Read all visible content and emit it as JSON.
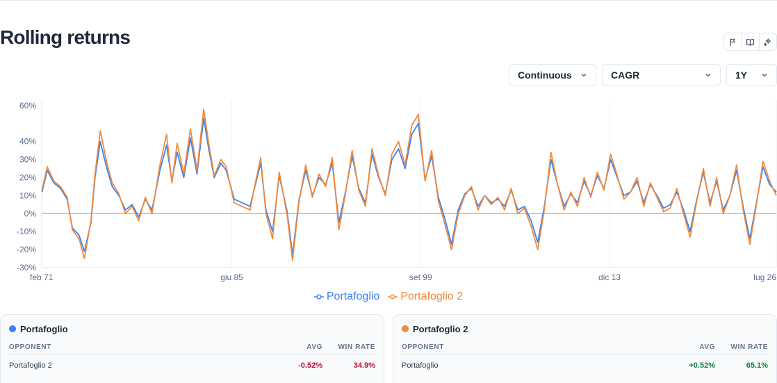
{
  "page": {
    "title": "Rolling returns"
  },
  "toolbar": {
    "icons": [
      "flag-icon",
      "book-icon",
      "sparkles-icon"
    ],
    "selects": [
      {
        "value": "Continuous"
      },
      {
        "value": "CAGR"
      },
      {
        "value": "1Y"
      }
    ]
  },
  "colors": {
    "series1": "#3b82f6",
    "series2": "#f08a3e",
    "zero_line": "#b9bed8",
    "grid": "#eef0f4",
    "negative": "#be123c",
    "positive": "#15803d"
  },
  "chart_data": {
    "type": "line",
    "title": "",
    "xlabel": "",
    "ylabel": "",
    "x_range": [
      1971.08,
      2026.5
    ],
    "ylim": [
      -30,
      63
    ],
    "y_ticks": [
      -30,
      -20,
      -10,
      0,
      10,
      20,
      30,
      40,
      60
    ],
    "y_tick_labels": [
      "-30%",
      "-20%",
      "-10%",
      "0%",
      "10%",
      "20%",
      "30%",
      "40%",
      "60%"
    ],
    "x_ticks": [
      {
        "x": 1971.08,
        "label": "feb 71"
      },
      {
        "x": 1985.42,
        "label": "giu 85"
      },
      {
        "x": 1999.67,
        "label": "set 99"
      },
      {
        "x": 2013.92,
        "label": "dic 13"
      },
      {
        "x": 2026.5,
        "label": "lug 26"
      }
    ],
    "grid": "vertical",
    "legend_position": "bottom-center",
    "series": [
      {
        "name": "Portafoglio",
        "color": "#3b82f6",
        "x": [
          1971.1,
          1971.5,
          1972.0,
          1972.5,
          1973.0,
          1973.4,
          1973.9,
          1974.3,
          1974.8,
          1975.1,
          1975.5,
          1976.0,
          1976.4,
          1976.9,
          1977.4,
          1977.9,
          1978.4,
          1978.9,
          1979.4,
          1980.0,
          1980.5,
          1980.9,
          1981.3,
          1981.8,
          1982.3,
          1982.8,
          1983.3,
          1983.7,
          1984.1,
          1984.6,
          1985.0,
          1985.6,
          1986.2,
          1986.8,
          1987.2,
          1987.6,
          1988.0,
          1988.5,
          1989.0,
          1989.6,
          1990.0,
          1990.5,
          1991.0,
          1991.5,
          1992.0,
          1992.5,
          1993.0,
          1993.5,
          1994.0,
          1994.5,
          1995.0,
          1995.5,
          1996.0,
          1996.5,
          1997.0,
          1997.5,
          1998.0,
          1998.5,
          1999.0,
          1999.5,
          2000.0,
          2000.5,
          2001.0,
          2001.5,
          2002.0,
          2002.5,
          2003.0,
          2003.5,
          2004.0,
          2004.5,
          2005.0,
          2005.5,
          2006.0,
          2006.5,
          2007.0,
          2007.5,
          2008.0,
          2008.5,
          2009.0,
          2009.5,
          2010.0,
          2010.5,
          2011.0,
          2011.5,
          2012.0,
          2012.5,
          2013.0,
          2013.5,
          2014.0,
          2014.5,
          2015.0,
          2015.5,
          2016.0,
          2016.5,
          2017.0,
          2017.5,
          2018.0,
          2018.5,
          2019.0,
          2019.5,
          2020.0,
          2020.5,
          2021.0,
          2021.5,
          2022.0,
          2022.5,
          2023.0,
          2023.5,
          2024.0,
          2024.5,
          2025.0,
          2025.5,
          2026.0,
          2026.5
        ],
        "values": [
          12,
          24,
          17,
          14,
          8,
          -8,
          -12,
          -21,
          -5,
          20,
          40,
          25,
          15,
          10,
          2,
          5,
          -2,
          8,
          2,
          24,
          38,
          18,
          34,
          20,
          42,
          22,
          53,
          35,
          20,
          28,
          24,
          8,
          6,
          4,
          16,
          28,
          2,
          -10,
          21,
          1,
          -23,
          8,
          24,
          10,
          20,
          16,
          28,
          -5,
          12,
          32,
          14,
          6,
          33,
          20,
          11,
          30,
          36,
          25,
          44,
          50,
          19,
          32,
          9,
          -3,
          -17,
          2,
          11,
          14,
          4,
          10,
          6,
          8,
          4,
          13,
          2,
          4,
          -4,
          -16,
          4,
          30,
          16,
          4,
          11,
          6,
          18,
          10,
          21,
          14,
          30,
          20,
          10,
          12,
          18,
          6,
          16,
          10,
          3,
          5,
          12,
          2,
          -10,
          8,
          23,
          6,
          18,
          2,
          10,
          24,
          4,
          -14,
          6,
          26,
          16,
          12
        ]
      },
      {
        "name": "Portafoglio 2",
        "color": "#f08a3e",
        "x": [
          1971.1,
          1971.5,
          1972.0,
          1972.5,
          1973.0,
          1973.4,
          1973.9,
          1974.3,
          1974.8,
          1975.1,
          1975.5,
          1976.0,
          1976.4,
          1976.9,
          1977.4,
          1977.9,
          1978.4,
          1978.9,
          1979.4,
          1980.0,
          1980.5,
          1980.9,
          1981.3,
          1981.8,
          1982.3,
          1982.8,
          1983.3,
          1983.7,
          1984.1,
          1984.6,
          1985.0,
          1985.6,
          1986.2,
          1986.8,
          1987.2,
          1987.6,
          1988.0,
          1988.5,
          1989.0,
          1989.6,
          1990.0,
          1990.5,
          1991.0,
          1991.5,
          1992.0,
          1992.5,
          1993.0,
          1993.5,
          1994.0,
          1994.5,
          1995.0,
          1995.5,
          1996.0,
          1996.5,
          1997.0,
          1997.5,
          1998.0,
          1998.5,
          1999.0,
          1999.5,
          2000.0,
          2000.5,
          2001.0,
          2001.5,
          2002.0,
          2002.5,
          2003.0,
          2003.5,
          2004.0,
          2004.5,
          2005.0,
          2005.5,
          2006.0,
          2006.5,
          2007.0,
          2007.5,
          2008.0,
          2008.5,
          2009.0,
          2009.5,
          2010.0,
          2010.5,
          2011.0,
          2011.5,
          2012.0,
          2012.5,
          2013.0,
          2013.5,
          2014.0,
          2014.5,
          2015.0,
          2015.5,
          2016.0,
          2016.5,
          2017.0,
          2017.5,
          2018.0,
          2018.5,
          2019.0,
          2019.5,
          2020.0,
          2020.5,
          2021.0,
          2021.5,
          2022.0,
          2022.5,
          2023.0,
          2023.5,
          2024.0,
          2024.5,
          2025.0,
          2025.5,
          2026.0,
          2026.5
        ],
        "values": [
          13,
          26,
          18,
          15,
          9,
          -9,
          -14,
          -25,
          -4,
          22,
          46,
          28,
          17,
          11,
          0,
          4,
          -4,
          9,
          0,
          27,
          44,
          17,
          39,
          22,
          47,
          24,
          58,
          38,
          21,
          30,
          26,
          6,
          4,
          2,
          17,
          31,
          0,
          -14,
          23,
          -1,
          -26,
          7,
          27,
          9,
          22,
          15,
          31,
          -9,
          11,
          35,
          13,
          4,
          36,
          21,
          10,
          33,
          40,
          27,
          49,
          55,
          18,
          35,
          7,
          -6,
          -20,
          0,
          10,
          15,
          2,
          10,
          5,
          9,
          2,
          14,
          0,
          3,
          -7,
          -20,
          2,
          34,
          16,
          2,
          12,
          4,
          20,
          9,
          23,
          13,
          33,
          21,
          8,
          12,
          20,
          4,
          17,
          9,
          1,
          3,
          14,
          0,
          -13,
          7,
          25,
          4,
          20,
          0,
          10,
          27,
          2,
          -17,
          5,
          29,
          18,
          10
        ]
      }
    ]
  },
  "comparison": [
    {
      "portfolio": "Portafoglio",
      "color": "#3b82f6",
      "col_opponent": "OPPONENT",
      "col_avg": "AVG",
      "col_win": "WIN RATE",
      "row": {
        "opponent": "Portafoglio 2",
        "avg": "-0.52%",
        "win_rate": "34.9%",
        "sign": "negative"
      }
    },
    {
      "portfolio": "Portafoglio 2",
      "color": "#f08a3e",
      "col_opponent": "OPPONENT",
      "col_avg": "AVG",
      "col_win": "WIN RATE",
      "row": {
        "opponent": "Portafoglio",
        "avg": "+0.52%",
        "win_rate": "65.1%",
        "sign": "positive"
      }
    }
  ]
}
